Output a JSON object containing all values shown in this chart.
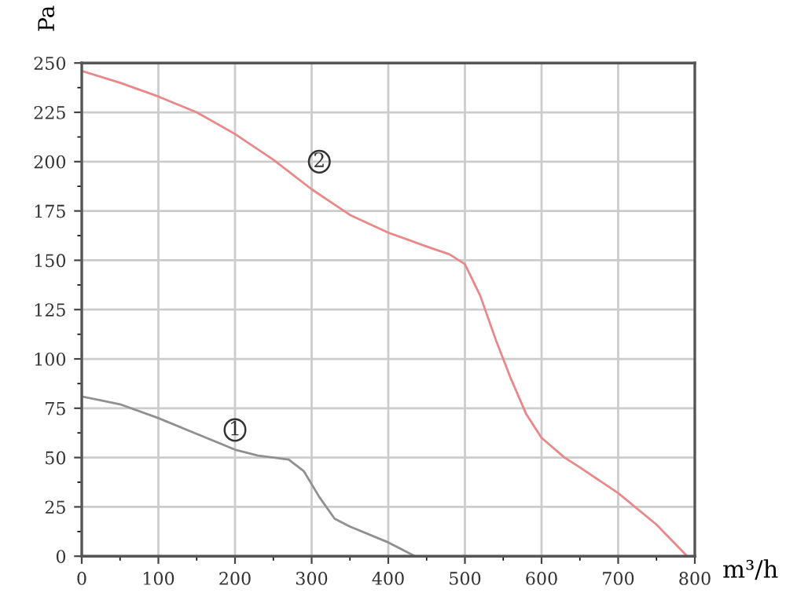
{
  "chart_data": {
    "type": "line",
    "xlabel": "m³/h",
    "ylabel": "Pa",
    "xlim": [
      0,
      800
    ],
    "ylim": [
      0,
      250
    ],
    "xticks": [
      0,
      100,
      200,
      300,
      400,
      500,
      600,
      700,
      800
    ],
    "yticks": [
      0,
      25,
      50,
      75,
      100,
      125,
      150,
      175,
      200,
      225,
      250
    ],
    "grid": true,
    "marker": "none",
    "line_style": "solid",
    "series": [
      {
        "color": "#909090",
        "x": [
          0,
          50,
          100,
          150,
          200,
          230,
          270,
          290,
          310,
          330,
          350,
          400,
          435
        ],
        "values": [
          81,
          77,
          70,
          62,
          54,
          51,
          49,
          43,
          30,
          19,
          15,
          7,
          0
        ]
      },
      {
        "color": "#e88888",
        "x": [
          0,
          50,
          100,
          150,
          200,
          250,
          300,
          350,
          400,
          450,
          480,
          500,
          520,
          540,
          560,
          580,
          600,
          630,
          650,
          700,
          750,
          790
        ],
        "values": [
          246,
          240,
          233,
          225,
          214,
          201,
          186,
          173,
          164,
          157,
          153,
          148,
          132,
          110,
          90,
          72,
          60,
          50,
          45,
          32,
          16,
          0
        ]
      }
    ],
    "annotations": [
      "1",
      "2"
    ]
  }
}
